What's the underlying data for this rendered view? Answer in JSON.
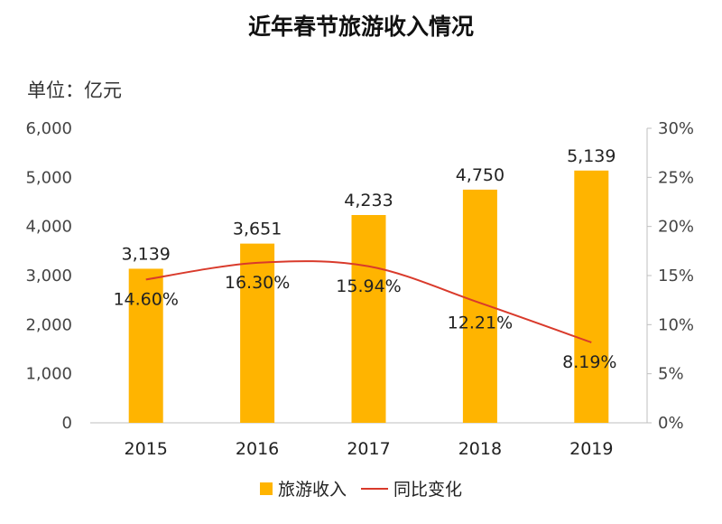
{
  "chart_data": {
    "type": "bar",
    "title": "近年春节旅游收入情况",
    "unit_label": "单位：亿元",
    "categories": [
      "2015",
      "2016",
      "2017",
      "2018",
      "2019"
    ],
    "series": [
      {
        "name": "旅游收入",
        "type": "bar",
        "axis": "left",
        "values": [
          3139,
          3651,
          4233,
          4750,
          5139
        ],
        "labels": [
          "3,139",
          "3,651",
          "4,233",
          "4,750",
          "5,139"
        ],
        "color": "#FFB400"
      },
      {
        "name": "同比变化",
        "type": "line",
        "axis": "right",
        "values": [
          14.6,
          16.3,
          15.94,
          12.21,
          8.19
        ],
        "labels": [
          "14.60%",
          "16.30%",
          "15.94%",
          "12.21%",
          "8.19%"
        ],
        "color": "#D93A2B"
      }
    ],
    "y_left": {
      "ylim": [
        0,
        6000
      ],
      "ticks": [
        "0",
        "1,000",
        "2,000",
        "3,000",
        "4,000",
        "5,000",
        "6,000"
      ]
    },
    "y_right": {
      "ylim": [
        0,
        30
      ],
      "ticks": [
        "0%",
        "5%",
        "10%",
        "15%",
        "20%",
        "25%",
        "30%"
      ]
    },
    "grid": false,
    "legend_position": "bottom"
  }
}
